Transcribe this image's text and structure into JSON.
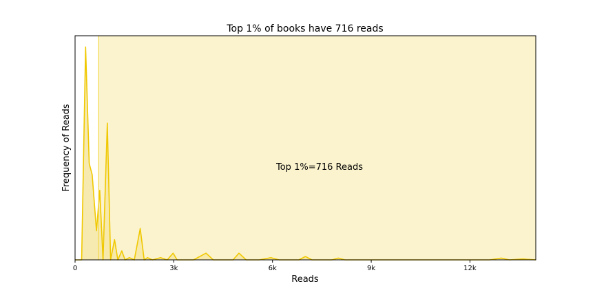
{
  "chart_data": {
    "type": "area",
    "title": "Top 1% of books have 716 reads",
    "xlabel": "Reads",
    "ylabel": "Frequency of Reads",
    "xlim": [
      0,
      14000
    ],
    "ylim": [
      0,
      1
    ],
    "xticks": [
      0,
      3000,
      6000,
      9000,
      12000
    ],
    "xtick_labels": [
      "0",
      "3k",
      "6k",
      "9k",
      "12k"
    ],
    "yticks_visible": false,
    "threshold": {
      "value": 716,
      "annotation": "Top 1%=716 Reads"
    },
    "colors": {
      "line": "#f0c800",
      "fill_left": "#f5e6a3",
      "fill_right": "#fbf3cd",
      "threshold_line": "#f5d94a"
    },
    "series": [
      {
        "points": [
          [
            0,
            0.0
          ],
          [
            100,
            0.0
          ],
          [
            200,
            0.0
          ],
          [
            320,
            0.95
          ],
          [
            430,
            0.43
          ],
          [
            520,
            0.38
          ],
          [
            650,
            0.13
          ],
          [
            750,
            0.31
          ],
          [
            850,
            0.0
          ],
          [
            980,
            0.61
          ],
          [
            1080,
            0.0
          ],
          [
            1200,
            0.09
          ],
          [
            1300,
            0.0
          ],
          [
            1420,
            0.04
          ],
          [
            1520,
            0.0
          ],
          [
            1650,
            0.01
          ],
          [
            1800,
            0.0
          ],
          [
            1980,
            0.14
          ],
          [
            2100,
            0.0
          ],
          [
            2200,
            0.01
          ],
          [
            2350,
            0.0
          ],
          [
            2600,
            0.01
          ],
          [
            2800,
            0.0
          ],
          [
            2980,
            0.03
          ],
          [
            3100,
            0.0
          ],
          [
            3400,
            0.0
          ],
          [
            3600,
            0.0
          ],
          [
            3980,
            0.03
          ],
          [
            4200,
            0.0
          ],
          [
            4500,
            0.0
          ],
          [
            4800,
            0.0
          ],
          [
            4980,
            0.03
          ],
          [
            5200,
            0.0
          ],
          [
            5600,
            0.0
          ],
          [
            5950,
            0.01
          ],
          [
            6200,
            0.0
          ],
          [
            6800,
            0.0
          ],
          [
            7000,
            0.015
          ],
          [
            7200,
            0.0
          ],
          [
            7800,
            0.0
          ],
          [
            8000,
            0.008
          ],
          [
            8200,
            0.0
          ],
          [
            9000,
            0.0
          ],
          [
            10000,
            0.0
          ],
          [
            11000,
            0.0
          ],
          [
            12000,
            0.0
          ],
          [
            12600,
            0.0
          ],
          [
            12950,
            0.008
          ],
          [
            13200,
            0.0
          ],
          [
            13600,
            0.004
          ],
          [
            14000,
            0.0
          ]
        ]
      }
    ]
  }
}
